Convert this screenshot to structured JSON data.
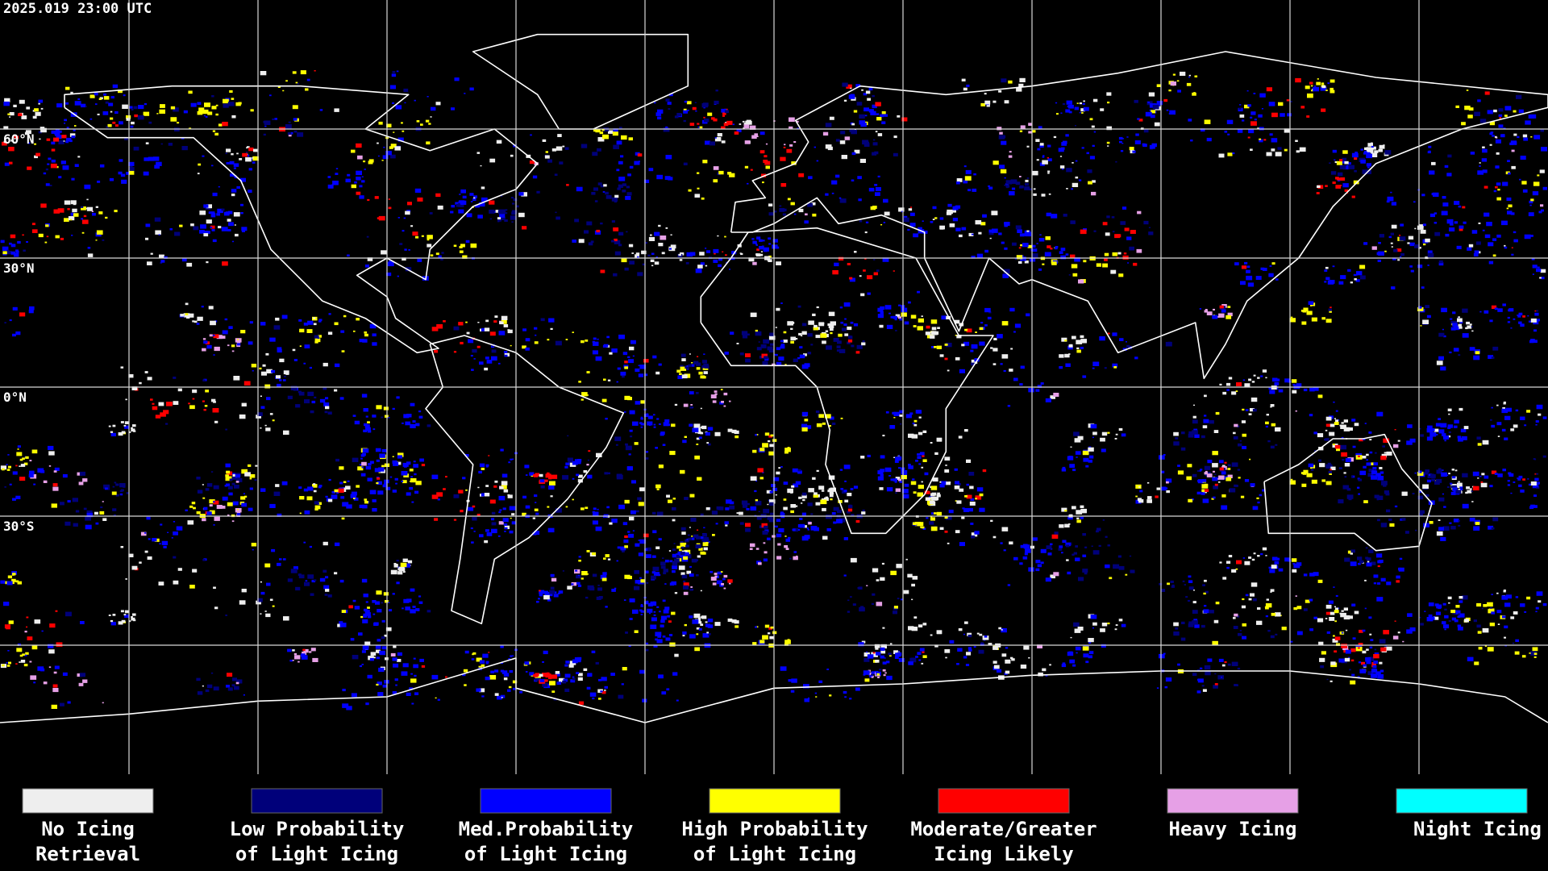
{
  "header": {
    "timestamp": "2025.019 23:00 UTC"
  },
  "latitude_labels": [
    "60°N",
    "30°N",
    "0°N",
    "30°S"
  ],
  "legend": [
    {
      "label_lines": [
        "No Icing",
        "Retrieval"
      ],
      "color": "#eeeeee"
    },
    {
      "label_lines": [
        "Low Probability",
        "of Light Icing"
      ],
      "color": "#00007a"
    },
    {
      "label_lines": [
        "Med.Probability",
        "of Light Icing"
      ],
      "color": "#0000ff"
    },
    {
      "label_lines": [
        "High Probability",
        "of Light Icing"
      ],
      "color": "#ffff00"
    },
    {
      "label_lines": [
        "Moderate/Greater",
        "Icing Likely"
      ],
      "color": "#ff0000"
    },
    {
      "label_lines": [
        "Heavy Icing"
      ],
      "color": "#e6a0e6"
    },
    {
      "label_lines": [
        "Night Icing"
      ],
      "color": "#00ffff"
    }
  ]
}
